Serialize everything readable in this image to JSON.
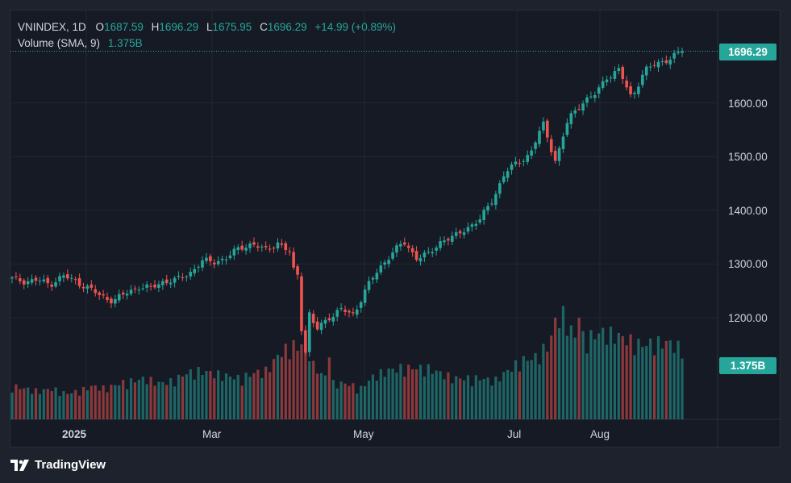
{
  "legend": {
    "symbol": "VNINDEX, 1D",
    "o_label": "O",
    "o_value": "1687.59",
    "h_label": "H",
    "h_value": "1696.29",
    "l_label": "L",
    "l_value": "1675.95",
    "c_label": "C",
    "c_value": "1696.29",
    "change": "+14.99 (+0.89%)",
    "volume_label": "Volume (SMA, 9)",
    "volume_value": "1.375B"
  },
  "badges": {
    "last_price": "1696.29",
    "volume": "1.375B"
  },
  "brand": {
    "name": "TradingView"
  },
  "colors": {
    "up": "#26a69a",
    "down": "#ef5350",
    "background": "#161a25",
    "grid": "#232733"
  },
  "chart_data": {
    "type": "candlestick",
    "symbol": "VNINDEX",
    "interval": "1D",
    "y_ticks": [
      "1200.00",
      "1300.00",
      "1400.00",
      "1500.00",
      "1600.00"
    ],
    "x_ticks": [
      "2025",
      "Mar",
      "May",
      "Jul",
      "Aug"
    ],
    "ylim": [
      1100,
      1760
    ],
    "series": [
      {
        "name": "VNINDEX",
        "anchor_closes": [
          1272,
          1268,
          1270,
          1262,
          1278,
          1268,
          1256,
          1240,
          1232,
          1245,
          1258,
          1255,
          1268,
          1270,
          1282,
          1305,
          1304,
          1312,
          1330,
          1338,
          1325,
          1340,
          1320,
          1200,
          1175,
          1200,
          1215,
          1205,
          1255,
          1290,
          1320,
          1340,
          1312,
          1318,
          1345,
          1350,
          1368,
          1382,
          1420,
          1470,
          1490,
          1505,
          1562,
          1490,
          1570,
          1600,
          1612,
          1648,
          1660,
          1610,
          1658,
          1675,
          1681,
          1696
        ]
      },
      {
        "name": "Volume",
        "anchor_volumes_bn": [
          0.65,
          0.6,
          0.55,
          0.6,
          0.5,
          0.55,
          0.65,
          0.6,
          0.7,
          0.75,
          0.8,
          0.7,
          0.75,
          0.9,
          0.95,
          0.9,
          0.85,
          0.8,
          0.9,
          0.95,
          1.3,
          1.45,
          1.2,
          0.9,
          0.7,
          0.7,
          0.6,
          0.85,
          0.95,
          1.0,
          1.0,
          1.0,
          0.9,
          0.8,
          0.8,
          0.8,
          0.75,
          0.95,
          1.15,
          1.2,
          1.45,
          2.1,
          1.6,
          1.6,
          1.7,
          1.65,
          1.55,
          1.45,
          1.5,
          1.5,
          1.375
        ]
      }
    ]
  }
}
